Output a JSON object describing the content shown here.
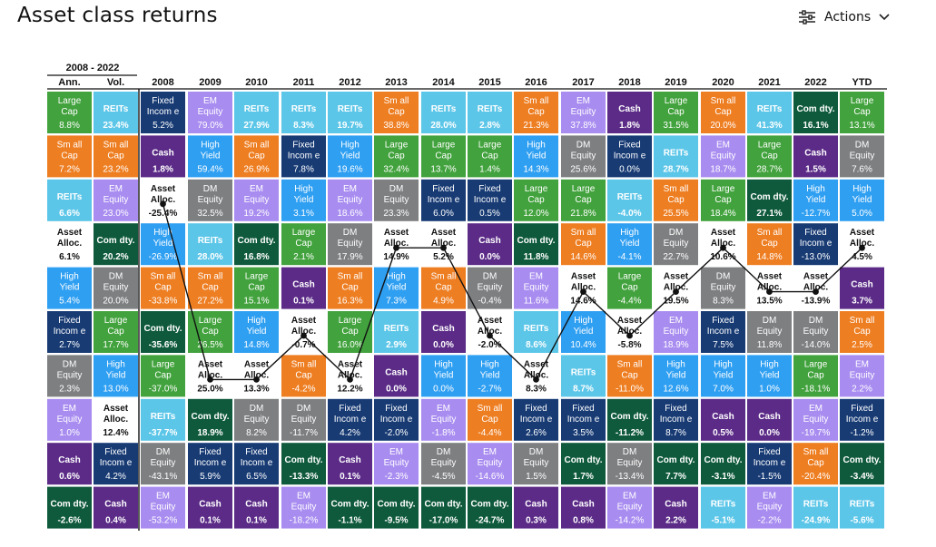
{
  "page": {
    "title": "Asset class returns",
    "actions_label": "Actions",
    "actions_icon": "sliders-icon",
    "chevron_icon": "chevron-down-icon"
  },
  "chart_data": {
    "type": "table",
    "span_label": "2008 - 2022",
    "summary_headers": [
      "Ann.",
      "Vol."
    ],
    "years": [
      "2008",
      "2009",
      "2010",
      "2011",
      "2012",
      "2013",
      "2014",
      "2015",
      "2016",
      "2017",
      "2018",
      "2019",
      "2020",
      "2021",
      "2022",
      "YTD"
    ],
    "asset_classes": {
      "LC": {
        "label": [
          "Large",
          "Cap"
        ],
        "color": "#42a23d",
        "text": "#ffffff"
      },
      "SC": {
        "label": [
          "Sm all",
          "Cap"
        ],
        "color": "#ee7e22",
        "text": "#ffffff"
      },
      "REIT": {
        "label": [
          "REITs"
        ],
        "color": "#5cc6e8",
        "text": "#ffffff"
      },
      "EM": {
        "label": [
          "EM",
          "Equity"
        ],
        "color": "#a88cf0",
        "text": "#ffffff"
      },
      "DM": {
        "label": [
          "DM",
          "Equity"
        ],
        "color": "#7e7f81",
        "text": "#ffffff"
      },
      "HY": {
        "label": [
          "High",
          "Yield"
        ],
        "color": "#2f9ff2",
        "text": "#ffffff"
      },
      "FI": {
        "label": [
          "Fixed",
          "Incom e"
        ],
        "color": "#183b74",
        "text": "#ffffff"
      },
      "AA": {
        "label": [
          "Asset",
          "Alloc."
        ],
        "color": "#ffffff",
        "text": "#111111"
      },
      "CASH": {
        "label": [
          "Cash"
        ],
        "color": "#5b2b87",
        "text": "#ffffff"
      },
      "COM": {
        "label": [
          "Com dty."
        ],
        "color": "#0f5a3c",
        "text": "#ffffff"
      }
    },
    "summary": [
      [
        [
          "LC",
          "8.8%"
        ],
        [
          "REIT",
          "23.4%"
        ]
      ],
      [
        [
          "SC",
          "7.2%"
        ],
        [
          "SC",
          "23.2%"
        ]
      ],
      [
        [
          "REIT",
          "6.6%"
        ],
        [
          "EM",
          "23.0%"
        ]
      ],
      [
        [
          "AA",
          "6.1%"
        ],
        [
          "COM",
          "20.2%"
        ]
      ],
      [
        [
          "HY",
          "5.4%"
        ],
        [
          "DM",
          "20.0%"
        ]
      ],
      [
        [
          "FI",
          "2.7%"
        ],
        [
          "LC",
          "17.7%"
        ]
      ],
      [
        [
          "DM",
          "2.3%"
        ],
        [
          "HY",
          "13.0%"
        ]
      ],
      [
        [
          "EM",
          "1.0%"
        ],
        [
          "AA",
          "12.4%"
        ]
      ],
      [
        [
          "CASH",
          "0.6%"
        ],
        [
          "FI",
          "4.2%"
        ]
      ],
      [
        [
          "COM",
          "-2.6%"
        ],
        [
          "CASH",
          "0.4%"
        ]
      ]
    ],
    "columns": [
      [
        [
          "FI",
          "5.2%"
        ],
        [
          "CASH",
          "1.8%"
        ],
        [
          "AA",
          "-25.4%"
        ],
        [
          "HY",
          "-26.9%"
        ],
        [
          "SC",
          "-33.8%"
        ],
        [
          "COM",
          "-35.6%"
        ],
        [
          "LC",
          "-37.0%"
        ],
        [
          "REIT",
          "-37.7%"
        ],
        [
          "DM",
          "-43.1%"
        ],
        [
          "EM",
          "-53.2%"
        ]
      ],
      [
        [
          "EM",
          "79.0%"
        ],
        [
          "HY",
          "59.4%"
        ],
        [
          "DM",
          "32.5%"
        ],
        [
          "REIT",
          "28.0%"
        ],
        [
          "SC",
          "27.2%"
        ],
        [
          "LC",
          "26.5%"
        ],
        [
          "AA",
          "25.0%"
        ],
        [
          "COM",
          "18.9%"
        ],
        [
          "FI",
          "5.9%"
        ],
        [
          "CASH",
          "0.1%"
        ]
      ],
      [
        [
          "REIT",
          "27.9%"
        ],
        [
          "SC",
          "26.9%"
        ],
        [
          "EM",
          "19.2%"
        ],
        [
          "COM",
          "16.8%"
        ],
        [
          "LC",
          "15.1%"
        ],
        [
          "HY",
          "14.8%"
        ],
        [
          "AA",
          "13.3%"
        ],
        [
          "DM",
          "8.2%"
        ],
        [
          "FI",
          "6.5%"
        ],
        [
          "CASH",
          "0.1%"
        ]
      ],
      [
        [
          "REIT",
          "8.3%"
        ],
        [
          "FI",
          "7.8%"
        ],
        [
          "HY",
          "3.1%"
        ],
        [
          "LC",
          "2.1%"
        ],
        [
          "CASH",
          "0.1%"
        ],
        [
          "AA",
          "-0.7%"
        ],
        [
          "SC",
          "-4.2%"
        ],
        [
          "DM",
          "-11.7%"
        ],
        [
          "COM",
          "-13.3%"
        ],
        [
          "EM",
          "-18.2%"
        ]
      ],
      [
        [
          "REIT",
          "19.7%"
        ],
        [
          "HY",
          "19.6%"
        ],
        [
          "EM",
          "18.6%"
        ],
        [
          "DM",
          "17.9%"
        ],
        [
          "SC",
          "16.3%"
        ],
        [
          "LC",
          "16.0%"
        ],
        [
          "AA",
          "12.2%"
        ],
        [
          "FI",
          "4.2%"
        ],
        [
          "CASH",
          "0.1%"
        ],
        [
          "COM",
          "-1.1%"
        ]
      ],
      [
        [
          "SC",
          "38.8%"
        ],
        [
          "LC",
          "32.4%"
        ],
        [
          "DM",
          "23.3%"
        ],
        [
          "AA",
          "14.9%"
        ],
        [
          "HY",
          "7.3%"
        ],
        [
          "REIT",
          "2.9%"
        ],
        [
          "CASH",
          "0.0%"
        ],
        [
          "FI",
          "-2.0%"
        ],
        [
          "EM",
          "-2.3%"
        ],
        [
          "COM",
          "-9.5%"
        ]
      ],
      [
        [
          "REIT",
          "28.0%"
        ],
        [
          "LC",
          "13.7%"
        ],
        [
          "FI",
          "6.0%"
        ],
        [
          "AA",
          "5.2%"
        ],
        [
          "SC",
          "4.9%"
        ],
        [
          "CASH",
          "0.0%"
        ],
        [
          "HY",
          "0.0%"
        ],
        [
          "EM",
          "-1.8%"
        ],
        [
          "DM",
          "-4.5%"
        ],
        [
          "COM",
          "-17.0%"
        ]
      ],
      [
        [
          "REIT",
          "2.8%"
        ],
        [
          "LC",
          "1.4%"
        ],
        [
          "FI",
          "0.5%"
        ],
        [
          "CASH",
          "0.0%"
        ],
        [
          "DM",
          "-0.4%"
        ],
        [
          "AA",
          "-2.0%"
        ],
        [
          "HY",
          "-2.7%"
        ],
        [
          "SC",
          "-4.4%"
        ],
        [
          "EM",
          "-14.6%"
        ],
        [
          "COM",
          "-24.7%"
        ]
      ],
      [
        [
          "SC",
          "21.3%"
        ],
        [
          "HY",
          "14.3%"
        ],
        [
          "LC",
          "12.0%"
        ],
        [
          "COM",
          "11.8%"
        ],
        [
          "EM",
          "11.6%"
        ],
        [
          "REIT",
          "8.6%"
        ],
        [
          "AA",
          "8.3%"
        ],
        [
          "FI",
          "2.6%"
        ],
        [
          "DM",
          "1.5%"
        ],
        [
          "CASH",
          "0.3%"
        ]
      ],
      [
        [
          "EM",
          "37.8%"
        ],
        [
          "DM",
          "25.6%"
        ],
        [
          "LC",
          "21.8%"
        ],
        [
          "SC",
          "14.6%"
        ],
        [
          "AA",
          "14.6%"
        ],
        [
          "HY",
          "10.4%"
        ],
        [
          "REIT",
          "8.7%"
        ],
        [
          "FI",
          "3.5%"
        ],
        [
          "COM",
          "1.7%"
        ],
        [
          "CASH",
          "0.8%"
        ]
      ],
      [
        [
          "CASH",
          "1.8%"
        ],
        [
          "FI",
          "0.0%"
        ],
        [
          "REIT",
          "-4.0%"
        ],
        [
          "HY",
          "-4.1%"
        ],
        [
          "LC",
          "-4.4%"
        ],
        [
          "AA",
          "-5.8%"
        ],
        [
          "SC",
          "-11.0%"
        ],
        [
          "COM",
          "-11.2%"
        ],
        [
          "DM",
          "-13.4%"
        ],
        [
          "EM",
          "-14.2%"
        ]
      ],
      [
        [
          "LC",
          "31.5%"
        ],
        [
          "REIT",
          "28.7%"
        ],
        [
          "SC",
          "25.5%"
        ],
        [
          "DM",
          "22.7%"
        ],
        [
          "AA",
          "19.5%"
        ],
        [
          "EM",
          "18.9%"
        ],
        [
          "HY",
          "12.6%"
        ],
        [
          "FI",
          "8.7%"
        ],
        [
          "COM",
          "7.7%"
        ],
        [
          "CASH",
          "2.2%"
        ]
      ],
      [
        [
          "SC",
          "20.0%"
        ],
        [
          "EM",
          "18.7%"
        ],
        [
          "LC",
          "18.4%"
        ],
        [
          "AA",
          "10.6%"
        ],
        [
          "DM",
          "8.3%"
        ],
        [
          "FI",
          "7.5%"
        ],
        [
          "HY",
          "7.0%"
        ],
        [
          "CASH",
          "0.5%"
        ],
        [
          "COM",
          "-3.1%"
        ],
        [
          "REIT",
          "-5.1%"
        ]
      ],
      [
        [
          "REIT",
          "41.3%"
        ],
        [
          "LC",
          "28.7%"
        ],
        [
          "COM",
          "27.1%"
        ],
        [
          "SC",
          "14.8%"
        ],
        [
          "AA",
          "13.5%"
        ],
        [
          "DM",
          "11.8%"
        ],
        [
          "HY",
          "1.0%"
        ],
        [
          "CASH",
          "0.0%"
        ],
        [
          "FI",
          "-1.5%"
        ],
        [
          "EM",
          "-2.2%"
        ]
      ],
      [
        [
          "COM",
          "16.1%"
        ],
        [
          "CASH",
          "1.5%"
        ],
        [
          "HY",
          "-12.7%"
        ],
        [
          "FI",
          "-13.0%"
        ],
        [
          "AA",
          "-13.9%"
        ],
        [
          "DM",
          "-14.0%"
        ],
        [
          "LC",
          "-18.1%"
        ],
        [
          "EM",
          "-19.7%"
        ],
        [
          "SC",
          "-20.4%"
        ],
        [
          "REIT",
          "-24.9%"
        ]
      ],
      [
        [
          "LC",
          "13.1%"
        ],
        [
          "DM",
          "7.6%"
        ],
        [
          "HY",
          "5.0%"
        ],
        [
          "AA",
          "4.5%"
        ],
        [
          "CASH",
          "3.7%"
        ],
        [
          "SC",
          "2.5%"
        ],
        [
          "EM",
          "2.2%"
        ],
        [
          "FI",
          "-1.2%"
        ],
        [
          "COM",
          "-3.4%"
        ],
        [
          "REIT",
          "-5.6%"
        ]
      ]
    ],
    "path_marker": "AA",
    "path_line_color": "#111111"
  }
}
